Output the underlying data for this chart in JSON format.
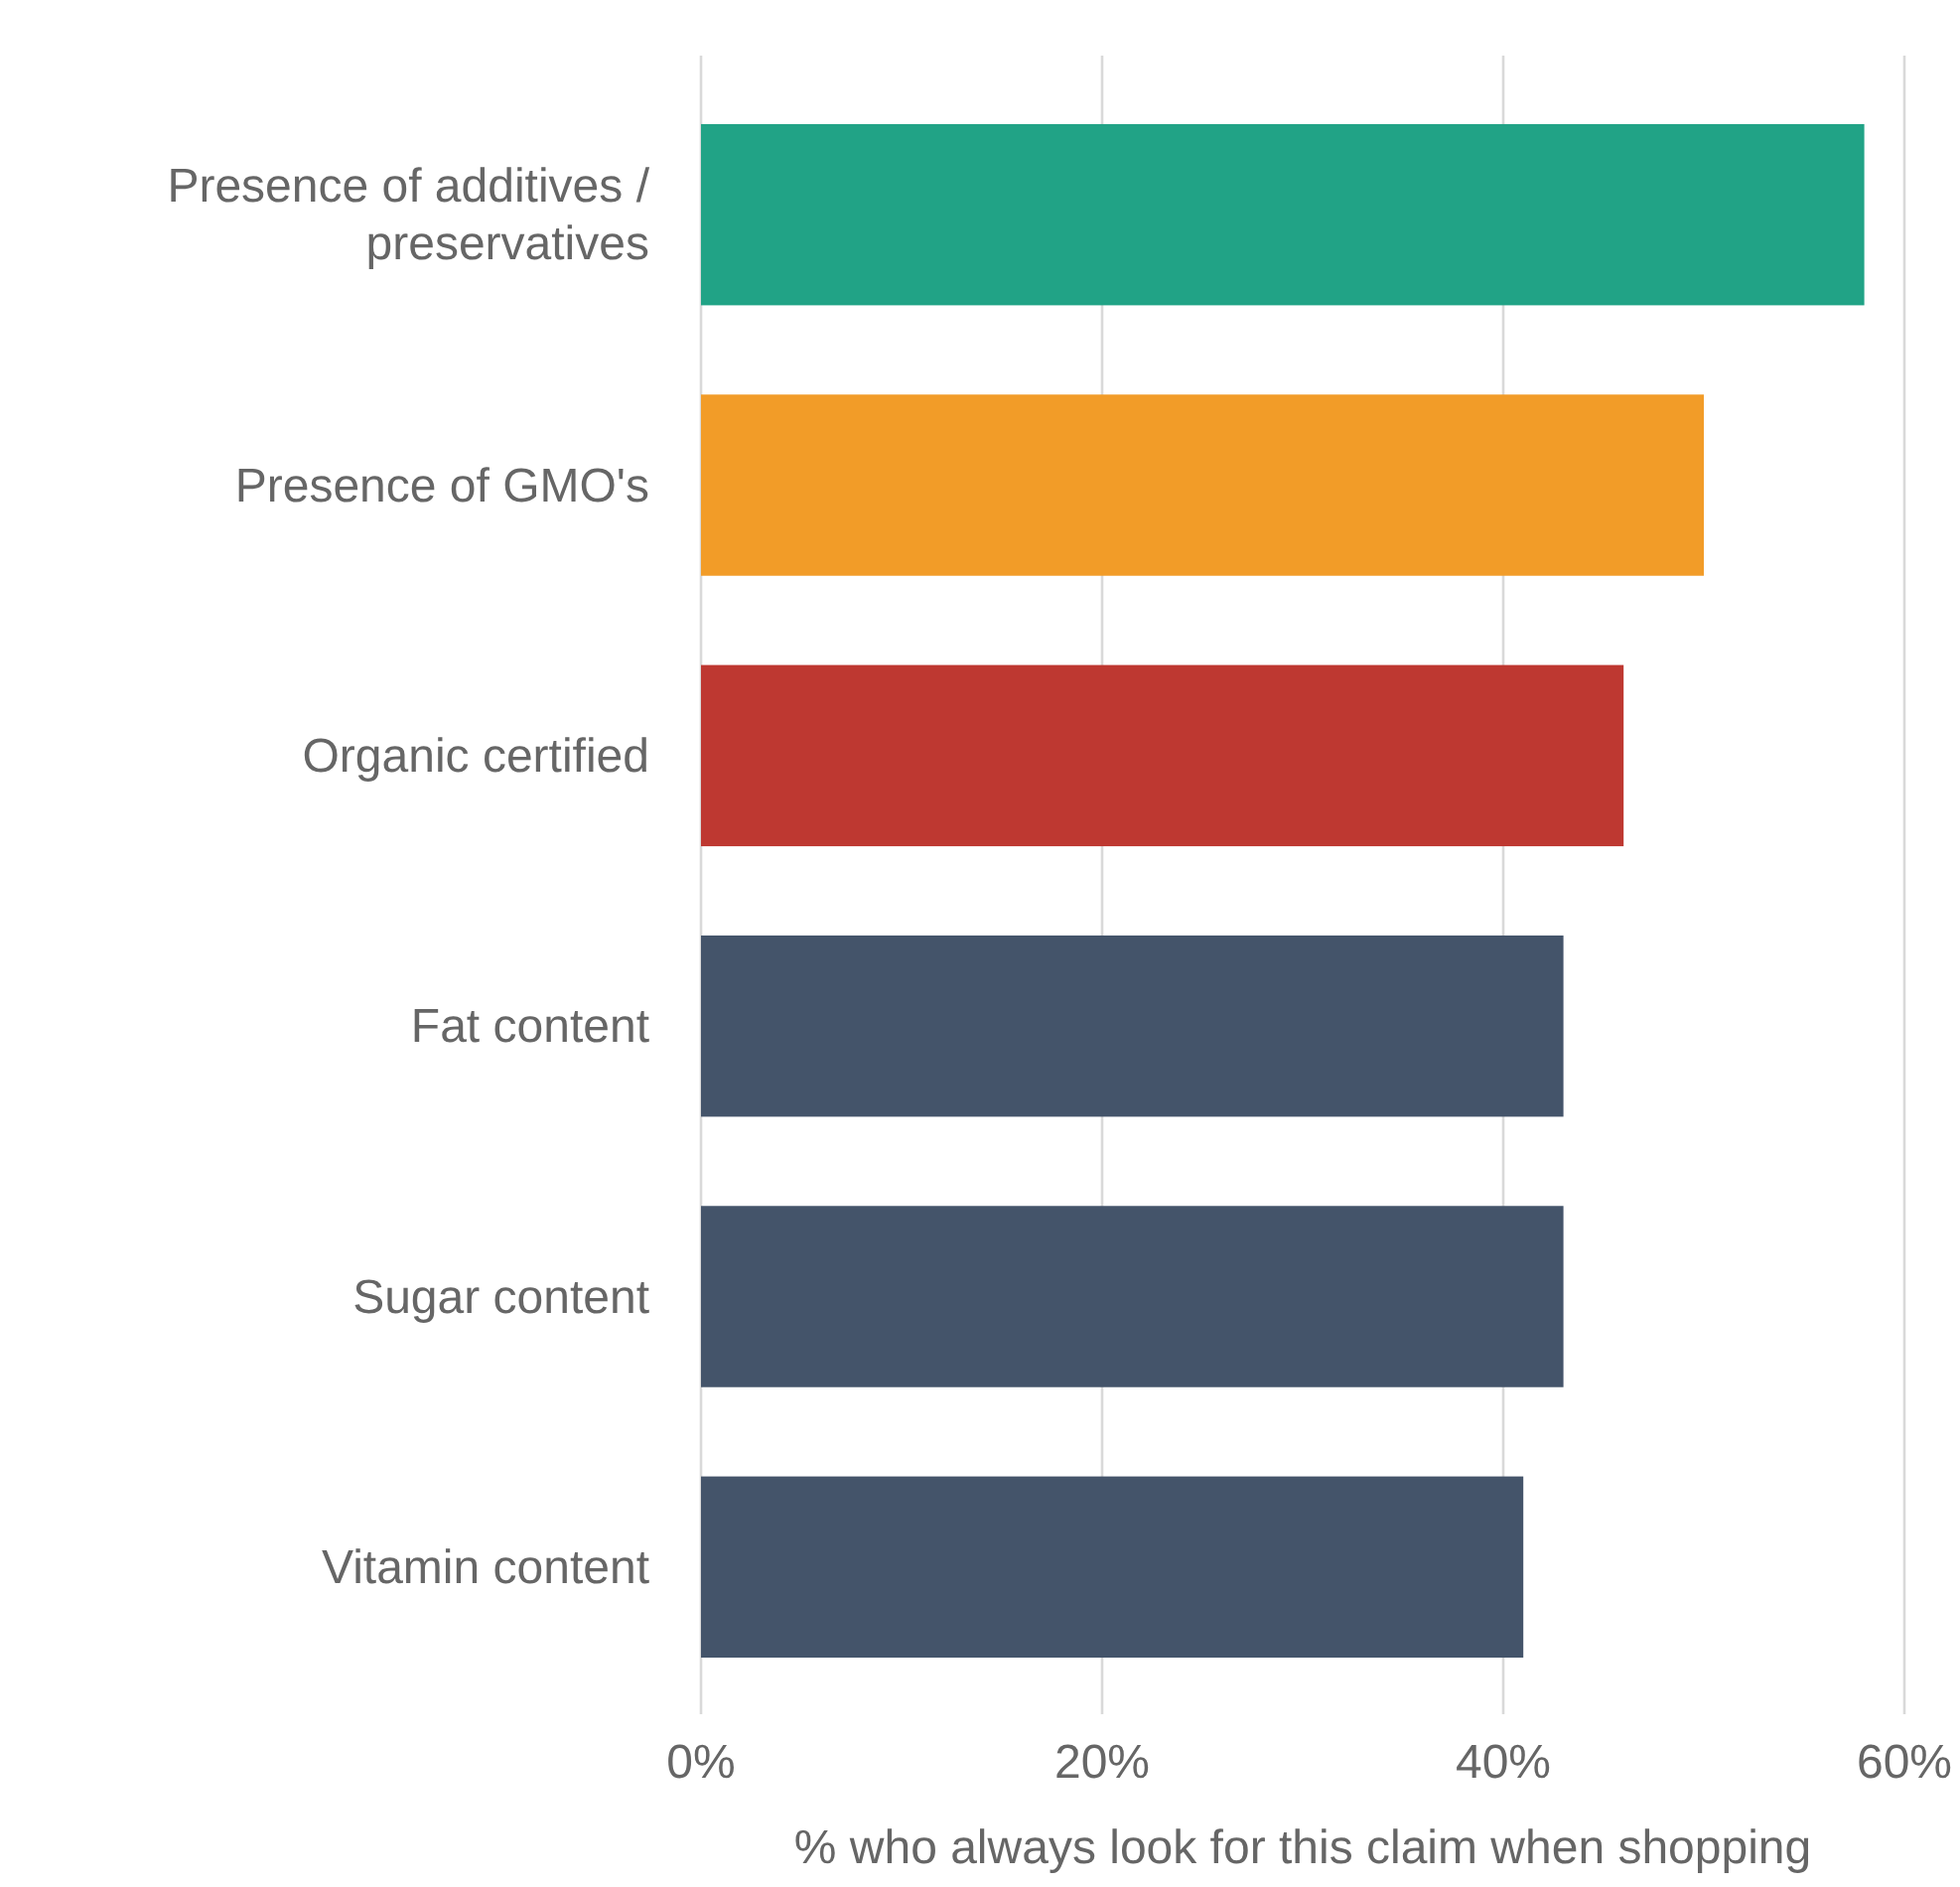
{
  "chart_data": {
    "type": "bar",
    "orientation": "horizontal",
    "xlabel": "% who always look for this claim when shopping",
    "categories": [
      "Presence of additives / preservatives",
      "Presence of GMO's",
      "Organic certified",
      "Fat content",
      "Sugar content",
      "Vitamin content"
    ],
    "values": [
      58,
      50,
      46,
      43,
      43,
      41
    ],
    "colors": [
      "#21a386",
      "#f29c28",
      "#be3831",
      "#44546a",
      "#44546a",
      "#44546a"
    ],
    "xlim": [
      0,
      60
    ],
    "xticks": [
      {
        "value": 0,
        "label": "0%"
      },
      {
        "value": 20,
        "label": "20%"
      },
      {
        "value": 40,
        "label": "40%"
      },
      {
        "value": 60,
        "label": "60%"
      }
    ],
    "grid": "x"
  }
}
